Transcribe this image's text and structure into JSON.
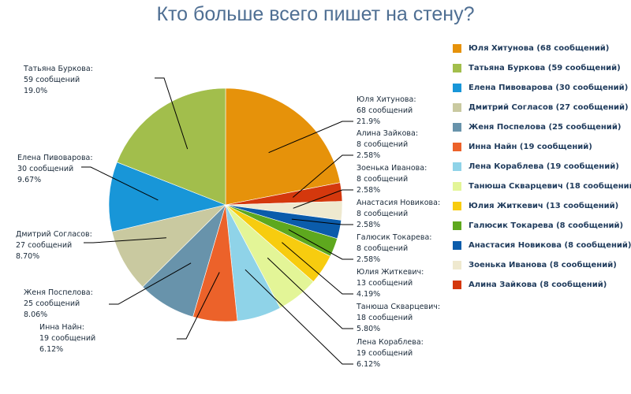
{
  "chart_data": {
    "type": "pie",
    "title": "Кто больше всего пишет на стену?",
    "slices": [
      {
        "name": "Юля Хитунова",
        "value": 68,
        "count_label": "68 сообщений",
        "percent": "21.9%",
        "legend": "Юля Хитунова (68 сообщений)",
        "color": "#e6920a"
      },
      {
        "name": "Алина Зайкова",
        "value": 8,
        "count_label": "8 сообщений",
        "percent": "2.58%",
        "legend": "Алина Зайкова (8 сообщений)",
        "color": "#d4380d"
      },
      {
        "name": "Зоенька Иванова",
        "value": 8,
        "count_label": "8 сообщений",
        "percent": "2.58%",
        "legend": "Зоенька Иванова (8 сообщений)",
        "color": "#efe9cf"
      },
      {
        "name": "Анастасия Новикова",
        "value": 8,
        "count_label": "8 сообщений",
        "percent": "2.58%",
        "legend": "Анастасия Новикова (8 сообщений)",
        "color": "#0b5cab"
      },
      {
        "name": "Галюсик Токарева",
        "value": 8,
        "count_label": "8 сообщений",
        "percent": "2.58%",
        "legend": "Галюсик Токарева (8 сообщений)",
        "color": "#5ea81e"
      },
      {
        "name": "Юлия Житкевич",
        "value": 13,
        "count_label": "13 сообщений",
        "percent": "4.19%",
        "legend": "Юлия Житкевич (13 сообщений)",
        "color": "#f7cc0f"
      },
      {
        "name": "Танюша Скварцевич",
        "value": 18,
        "count_label": "18 сообщений",
        "percent": "5.80%",
        "legend": "Танюша Скварцевич (18 сообщений)",
        "color": "#e3f597"
      },
      {
        "name": "Лена Кораблева",
        "value": 19,
        "count_label": "19 сообщений",
        "percent": "6.12%",
        "legend": "Лена Кораблева (19 сообщений)",
        "color": "#8fd3e8"
      },
      {
        "name": "Инна Найн",
        "value": 19,
        "count_label": "19 сообщений",
        "percent": "6.12%",
        "legend": "Инна Найн (19 сообщений)",
        "color": "#ec622a"
      },
      {
        "name": "Женя Поспелова",
        "value": 25,
        "count_label": "25 сообщений",
        "percent": "8.06%",
        "legend": "Женя Поспелова (25 сообщений)",
        "color": "#6893ab"
      },
      {
        "name": "Дмитрий Согласов",
        "value": 27,
        "count_label": "27 сообщений",
        "percent": "8.70%",
        "legend": "Дмитрий Согласов (27 сообщений)",
        "color": "#c9c9a0"
      },
      {
        "name": "Елена Пивоварова",
        "value": 30,
        "count_label": "30 сообщений",
        "percent": "9.67%",
        "legend": "Елена Пивоварова (30 сообщений)",
        "color": "#1896d8"
      },
      {
        "name": "Татьяна Буркова",
        "value": 59,
        "count_label": "59 сообщений",
        "percent": "19.0%",
        "legend": "Татьяна Буркова (59 сообщений)",
        "color": "#a2be4c"
      }
    ],
    "legend_order": [
      "Юля Хитунова",
      "Татьяна Буркова",
      "Елена Пивоварова",
      "Дмитрий Согласов",
      "Женя Поспелова",
      "Инна Найн",
      "Лена Кораблева",
      "Танюша Скварцевич",
      "Юлия Житкевич",
      "Галюсик Токарева",
      "Анастасия Новикова",
      "Зоенька Иванова",
      "Алина Зайкова"
    ],
    "legend_position": "right"
  }
}
